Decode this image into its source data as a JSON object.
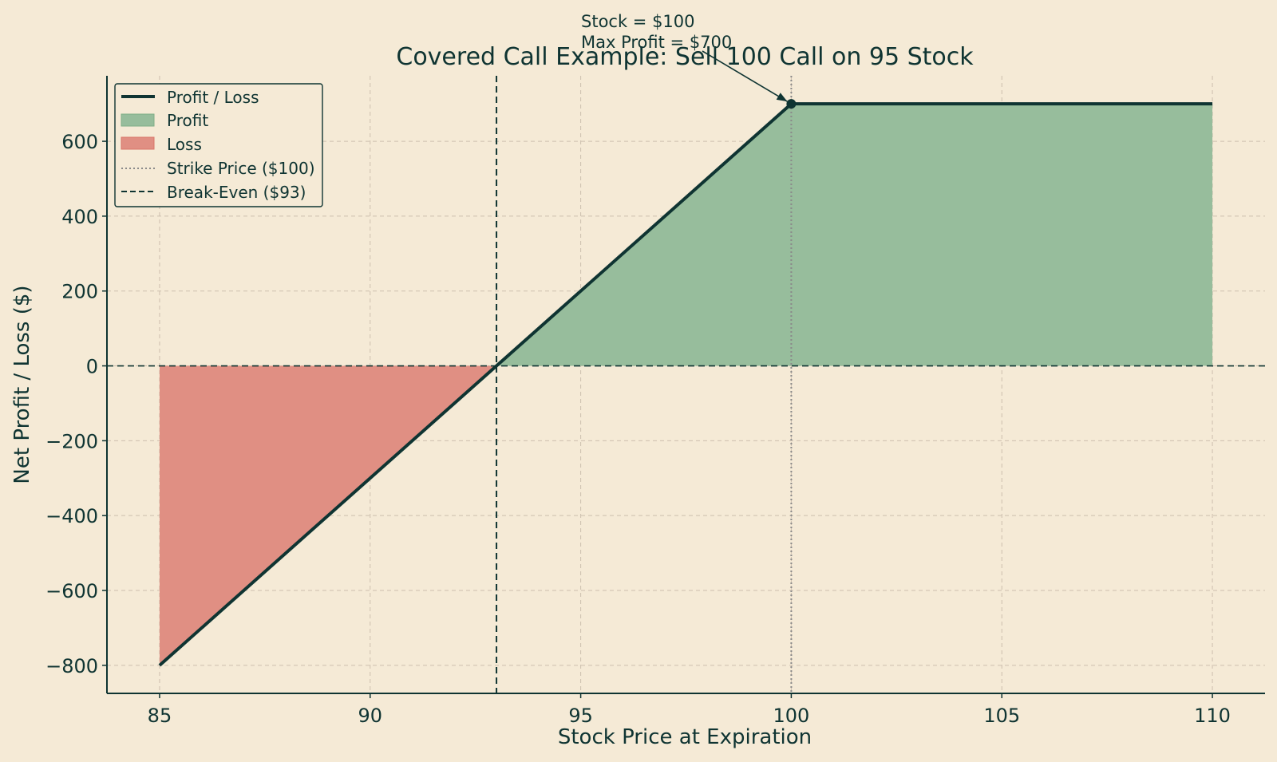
{
  "chart_data": {
    "type": "line",
    "title": "Covered Call Example: Sell 100 Call on 95 Stock",
    "xlabel": "Stock Price at Expiration",
    "ylabel": "Net Profit / Loss ($)",
    "xlim": [
      83.75,
      111.25
    ],
    "ylim": [
      -875,
      775
    ],
    "xticks": [
      85,
      90,
      95,
      100,
      105,
      110
    ],
    "yticks": [
      -800,
      -600,
      -400,
      -200,
      0,
      200,
      400,
      600
    ],
    "grid": true,
    "legend_position": "top-left",
    "series": [
      {
        "name": "Profit / Loss",
        "x": [
          85,
          93,
          100,
          110
        ],
        "y": [
          -800,
          0,
          700,
          700
        ],
        "color": "#0f3432"
      }
    ],
    "fills": {
      "profit": {
        "name": "Profit",
        "x": [
          93,
          100,
          110
        ],
        "y": [
          0,
          700,
          700
        ],
        "color": "#97bd9c"
      },
      "loss": {
        "name": "Loss",
        "x": [
          85,
          93
        ],
        "y": [
          -800,
          0
        ],
        "color": "#e08f83"
      }
    },
    "strike_line": {
      "name": "Strike Price ($100)",
      "x": 100,
      "color": "#8a8a8a"
    },
    "breakeven_line": {
      "name": "Break-Even ($93)",
      "x": 93,
      "color": "#0f3432"
    },
    "max_point": {
      "x": 100,
      "y": 700
    },
    "annotation": {
      "line1": "Stock = $100",
      "line2": "Max Profit = $700"
    },
    "legend": [
      "Profit / Loss",
      "Profit",
      "Loss",
      "Strike Price ($100)",
      "Break-Even ($93)"
    ],
    "colors": {
      "background": "#f5ead6",
      "grid": "#cdbfae",
      "axis": "#0f3432",
      "line": "#0f3432",
      "profit": "#97bd9c",
      "loss": "#e08f83"
    }
  }
}
